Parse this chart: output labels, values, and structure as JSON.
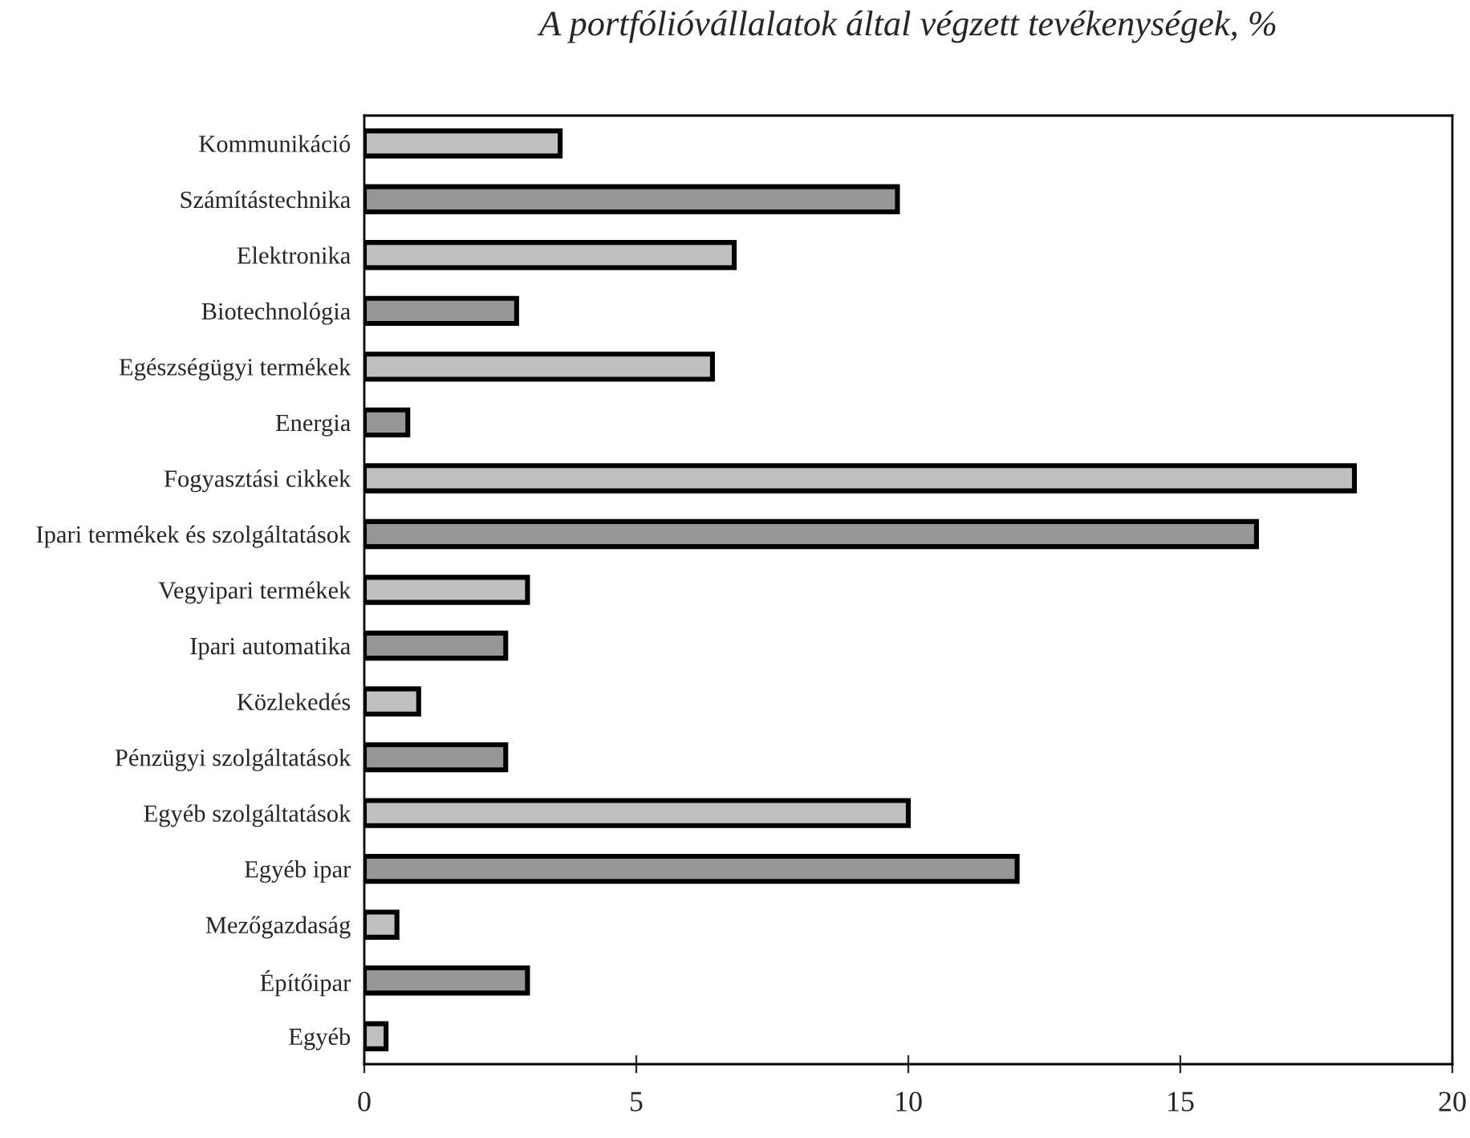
{
  "chart_data": {
    "type": "bar",
    "orientation": "horizontal",
    "title": "A portfólióvállalatok által végzett tevékenységek, %",
    "categories": [
      "Kommunikáció",
      "Számítástechnika",
      "Elektronika",
      "Biotechnológia",
      "Egészségügyi termékek",
      "Energia",
      "Fogyasztási cikkek",
      "Ipari termékek és szolgáltatások",
      "Vegyipari termékek",
      "Ipari automatika",
      "Közlekedés",
      "Pénzügyi szolgáltatások",
      "Egyéb szolgáltatások",
      "Egyéb ipar",
      "Mezőgazdaság",
      "Építőipar",
      "Egyéb"
    ],
    "values": [
      3.6,
      9.8,
      6.8,
      2.8,
      6.4,
      0.8,
      18.2,
      16.4,
      3.0,
      2.6,
      1.0,
      2.6,
      10.0,
      12.0,
      0.6,
      3.0,
      0.4
    ],
    "colors": [
      "#c0c0c0",
      "#969696",
      "#c0c0c0",
      "#969696",
      "#c0c0c0",
      "#969696",
      "#c0c0c0",
      "#969696",
      "#c0c0c0",
      "#969696",
      "#c0c0c0",
      "#969696",
      "#c0c0c0",
      "#969696",
      "#c0c0c0",
      "#969696",
      "#c0c0c0"
    ],
    "xlim": [
      0,
      20
    ],
    "xticks": [
      0,
      5,
      10,
      15,
      20
    ],
    "grid": false,
    "legend": false
  }
}
